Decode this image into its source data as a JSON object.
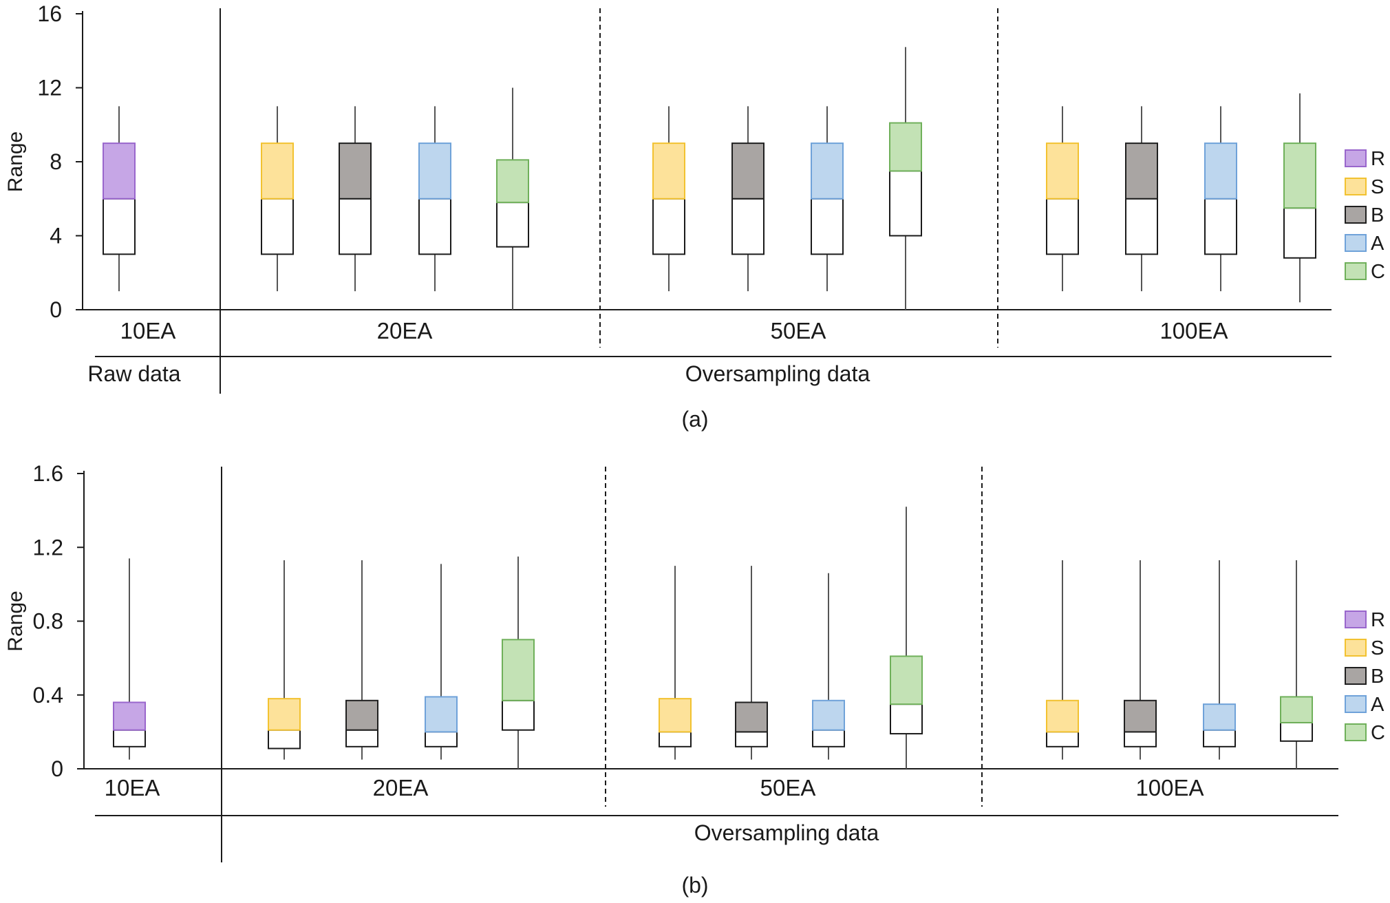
{
  "legend": [
    {
      "key": "R",
      "color": "#9966cc",
      "fill": "#c6a6e6"
    },
    {
      "key": "S",
      "color": "#f2c230",
      "fill": "#fde29a"
    },
    {
      "key": "B",
      "color": "#1f1f1f",
      "fill": "#a9a5a3"
    },
    {
      "key": "A",
      "color": "#6fa2d9",
      "fill": "#bdd6ee"
    },
    {
      "key": "C",
      "color": "#6fb05a",
      "fill": "#c3e2b5"
    }
  ],
  "chart_data": [
    {
      "type": "boxplot",
      "caption": "(a)",
      "ylabel": "Range",
      "ylim": [
        0,
        16
      ],
      "yticks": [
        "0",
        "4",
        "8",
        "12",
        "16"
      ],
      "groups": [
        {
          "label": "10EA",
          "section": "Raw data"
        },
        {
          "label": "20EA",
          "section": "Oversampling data"
        },
        {
          "label": "50EA",
          "section": "Oversampling data"
        },
        {
          "label": "100EA",
          "section": "Oversampling data"
        }
      ],
      "sections": [
        "Raw data",
        "Oversampling data"
      ],
      "boxes": [
        {
          "group": "10EA",
          "series": "R",
          "min": 1,
          "q1": 3,
          "median": 6,
          "q3": 9,
          "max": 11
        },
        {
          "group": "20EA",
          "series": "S",
          "min": 1,
          "q1": 3,
          "median": 6,
          "q3": 9,
          "max": 11
        },
        {
          "group": "20EA",
          "series": "B",
          "min": 1,
          "q1": 3,
          "median": 6,
          "q3": 9,
          "max": 11
        },
        {
          "group": "20EA",
          "series": "A",
          "min": 1,
          "q1": 3,
          "median": 6,
          "q3": 9,
          "max": 11
        },
        {
          "group": "20EA",
          "series": "C",
          "min": 0,
          "q1": 3.4,
          "median": 5.8,
          "q3": 8.1,
          "max": 12
        },
        {
          "group": "50EA",
          "series": "S",
          "min": 1,
          "q1": 3,
          "median": 6,
          "q3": 9,
          "max": 11
        },
        {
          "group": "50EA",
          "series": "B",
          "min": 1,
          "q1": 3,
          "median": 6,
          "q3": 9,
          "max": 11
        },
        {
          "group": "50EA",
          "series": "A",
          "min": 1,
          "q1": 3,
          "median": 6,
          "q3": 9,
          "max": 11
        },
        {
          "group": "50EA",
          "series": "C",
          "min": 0,
          "q1": 4,
          "median": 7.5,
          "q3": 10.1,
          "max": 14.2
        },
        {
          "group": "100EA",
          "series": "S",
          "min": 1,
          "q1": 3,
          "median": 6,
          "q3": 9,
          "max": 11
        },
        {
          "group": "100EA",
          "series": "B",
          "min": 1,
          "q1": 3,
          "median": 6,
          "q3": 9,
          "max": 11
        },
        {
          "group": "100EA",
          "series": "A",
          "min": 1,
          "q1": 3,
          "median": 6,
          "q3": 9,
          "max": 11
        },
        {
          "group": "100EA",
          "series": "C",
          "min": 0.4,
          "q1": 2.8,
          "median": 5.5,
          "q3": 9,
          "max": 11.7
        }
      ]
    },
    {
      "type": "boxplot",
      "caption": "(b)",
      "ylabel": "Range",
      "ylim": [
        0,
        1.6
      ],
      "yticks": [
        "0",
        "0.4",
        "0.8",
        "1.2",
        "1.6"
      ],
      "groups": [
        {
          "label": "10EA",
          "section": "Oversampling data"
        },
        {
          "label": "20EA",
          "section": "Oversampling data"
        },
        {
          "label": "50EA",
          "section": "Oversampling data"
        },
        {
          "label": "100EA",
          "section": "Oversampling data"
        }
      ],
      "sections": [
        "Oversampling data"
      ],
      "boxes": [
        {
          "group": "10EA",
          "series": "R",
          "min": 0.05,
          "q1": 0.12,
          "median": 0.21,
          "q3": 0.36,
          "max": 1.14
        },
        {
          "group": "20EA",
          "series": "S",
          "min": 0.05,
          "q1": 0.11,
          "median": 0.21,
          "q3": 0.38,
          "max": 1.13
        },
        {
          "group": "20EA",
          "series": "B",
          "min": 0.05,
          "q1": 0.12,
          "median": 0.21,
          "q3": 0.37,
          "max": 1.13
        },
        {
          "group": "20EA",
          "series": "A",
          "min": 0.05,
          "q1": 0.12,
          "median": 0.2,
          "q3": 0.39,
          "max": 1.11
        },
        {
          "group": "20EA",
          "series": "C",
          "min": 0,
          "q1": 0.21,
          "median": 0.37,
          "q3": 0.7,
          "max": 1.15
        },
        {
          "group": "50EA",
          "series": "S",
          "min": 0.05,
          "q1": 0.12,
          "median": 0.2,
          "q3": 0.38,
          "max": 1.1
        },
        {
          "group": "50EA",
          "series": "B",
          "min": 0.05,
          "q1": 0.12,
          "median": 0.2,
          "q3": 0.36,
          "max": 1.1
        },
        {
          "group": "50EA",
          "series": "A",
          "min": 0.05,
          "q1": 0.12,
          "median": 0.21,
          "q3": 0.37,
          "max": 1.06
        },
        {
          "group": "50EA",
          "series": "C",
          "min": 0,
          "q1": 0.19,
          "median": 0.35,
          "q3": 0.61,
          "max": 1.42
        },
        {
          "group": "100EA",
          "series": "S",
          "min": 0.05,
          "q1": 0.12,
          "median": 0.2,
          "q3": 0.37,
          "max": 1.13
        },
        {
          "group": "100EA",
          "series": "B",
          "min": 0.05,
          "q1": 0.12,
          "median": 0.2,
          "q3": 0.37,
          "max": 1.13
        },
        {
          "group": "100EA",
          "series": "A",
          "min": 0.05,
          "q1": 0.12,
          "median": 0.21,
          "q3": 0.35,
          "max": 1.13
        },
        {
          "group": "100EA",
          "series": "C",
          "min": 0,
          "q1": 0.15,
          "median": 0.25,
          "q3": 0.39,
          "max": 1.13
        }
      ]
    }
  ]
}
